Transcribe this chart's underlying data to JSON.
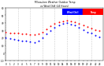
{
  "title": "Milwaukee Weather Outdoor Temp\nvs Wind Chill (24 Hours)",
  "background_color": "#ffffff",
  "plot_bg_color": "#ffffff",
  "grid_color": "#cccccc",
  "temp_color": "#ff0000",
  "windchill_color": "#0000ff",
  "dot_color": "#000000",
  "ylim": [
    -10,
    60
  ],
  "xlim": [
    0,
    24
  ],
  "hours": [
    0,
    1,
    2,
    3,
    4,
    5,
    6,
    7,
    8,
    9,
    10,
    11,
    12,
    13,
    14,
    15,
    16,
    17,
    18,
    19,
    20,
    21,
    22,
    23
  ],
  "temp": [
    28,
    27,
    26,
    26,
    25,
    25,
    24,
    24,
    25,
    28,
    32,
    36,
    39,
    41,
    42,
    43,
    42,
    41,
    39,
    37,
    35,
    33,
    31,
    30
  ],
  "windchill": [
    20,
    19,
    18,
    17,
    16,
    16,
    15,
    14,
    16,
    20,
    25,
    30,
    34,
    37,
    39,
    40,
    38,
    37,
    34,
    31,
    28,
    26,
    23,
    21
  ],
  "legend_temp_label": "Temp",
  "legend_wc_label": "Wind Chill",
  "ytick_labels": [
    "60",
    "50",
    "40",
    "30",
    "20",
    "10",
    "0",
    "-10"
  ],
  "ytick_values": [
    60,
    50,
    40,
    30,
    20,
    10,
    0,
    -10
  ],
  "xtick_values": [
    0,
    1,
    2,
    3,
    4,
    5,
    6,
    7,
    8,
    9,
    10,
    11,
    12,
    13,
    14,
    15,
    16,
    17,
    18,
    19,
    20,
    21,
    22,
    23
  ],
  "vgrid_positions": [
    0,
    3,
    6,
    9,
    12,
    15,
    18,
    21,
    24
  ],
  "marker_size": 2.0
}
